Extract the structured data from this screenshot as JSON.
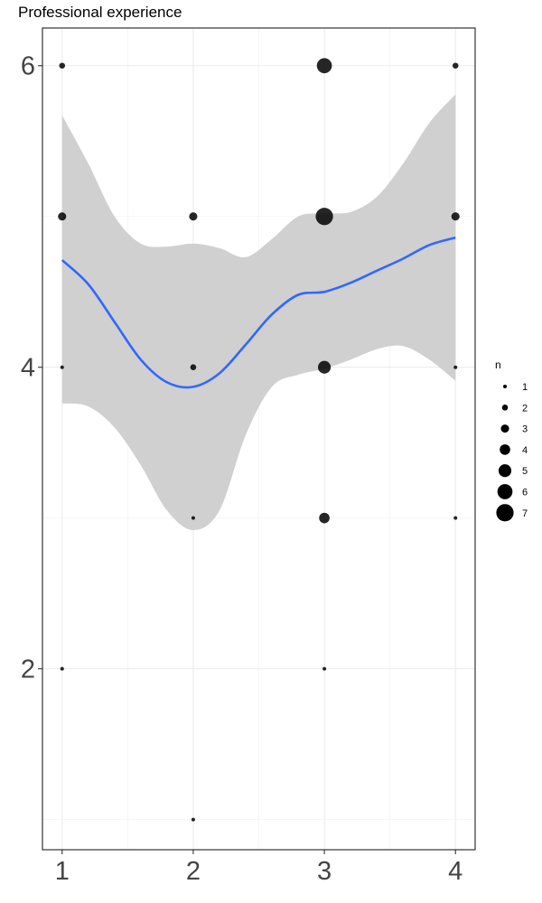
{
  "chart_data": {
    "type": "scatter",
    "title": "Professional experience",
    "xlabel": "",
    "ylabel": "",
    "xlim": [
      0.85,
      4.15
    ],
    "ylim": [
      0.8,
      6.25
    ],
    "x_ticks": [
      1,
      2,
      3,
      4
    ],
    "y_ticks": [
      2,
      4,
      6
    ],
    "grid": true,
    "legend": {
      "title": "n",
      "position": "right",
      "values": [
        1,
        2,
        3,
        4,
        5,
        6,
        7
      ]
    },
    "points": [
      {
        "x": 1,
        "y": 6,
        "n": 2
      },
      {
        "x": 1,
        "y": 5,
        "n": 3
      },
      {
        "x": 1,
        "y": 4,
        "n": 1
      },
      {
        "x": 1,
        "y": 2,
        "n": 1
      },
      {
        "x": 2,
        "y": 5,
        "n": 3
      },
      {
        "x": 2,
        "y": 4,
        "n": 2
      },
      {
        "x": 2,
        "y": 3,
        "n": 1
      },
      {
        "x": 2,
        "y": 1,
        "n": 1
      },
      {
        "x": 3,
        "y": 6,
        "n": 6
      },
      {
        "x": 3,
        "y": 5,
        "n": 7
      },
      {
        "x": 3,
        "y": 4,
        "n": 5
      },
      {
        "x": 3,
        "y": 3,
        "n": 4
      },
      {
        "x": 3,
        "y": 2,
        "n": 1
      },
      {
        "x": 4,
        "y": 6,
        "n": 2
      },
      {
        "x": 4,
        "y": 5,
        "n": 3
      },
      {
        "x": 4,
        "y": 4,
        "n": 1
      },
      {
        "x": 4,
        "y": 3,
        "n": 1
      }
    ],
    "smooth": {
      "x": [
        1.0,
        1.2,
        1.4,
        1.6,
        1.8,
        2.0,
        2.2,
        2.4,
        2.6,
        2.8,
        3.0,
        3.2,
        3.4,
        3.6,
        3.8,
        4.0
      ],
      "y": [
        4.71,
        4.55,
        4.3,
        4.05,
        3.9,
        3.87,
        3.96,
        4.15,
        4.35,
        4.48,
        4.5,
        4.56,
        4.64,
        4.72,
        4.81,
        4.86
      ],
      "lower": [
        3.76,
        3.74,
        3.6,
        3.35,
        3.05,
        2.92,
        3.05,
        3.55,
        3.87,
        3.95,
        3.99,
        4.05,
        4.12,
        4.14,
        4.05,
        3.91
      ],
      "upper": [
        5.67,
        5.35,
        5.0,
        4.82,
        4.8,
        4.82,
        4.79,
        4.73,
        4.85,
        5.0,
        5.02,
        5.03,
        5.13,
        5.35,
        5.62,
        5.81
      ],
      "line_color": "#3366FF",
      "ribbon_color": "#d0d0d0"
    }
  }
}
